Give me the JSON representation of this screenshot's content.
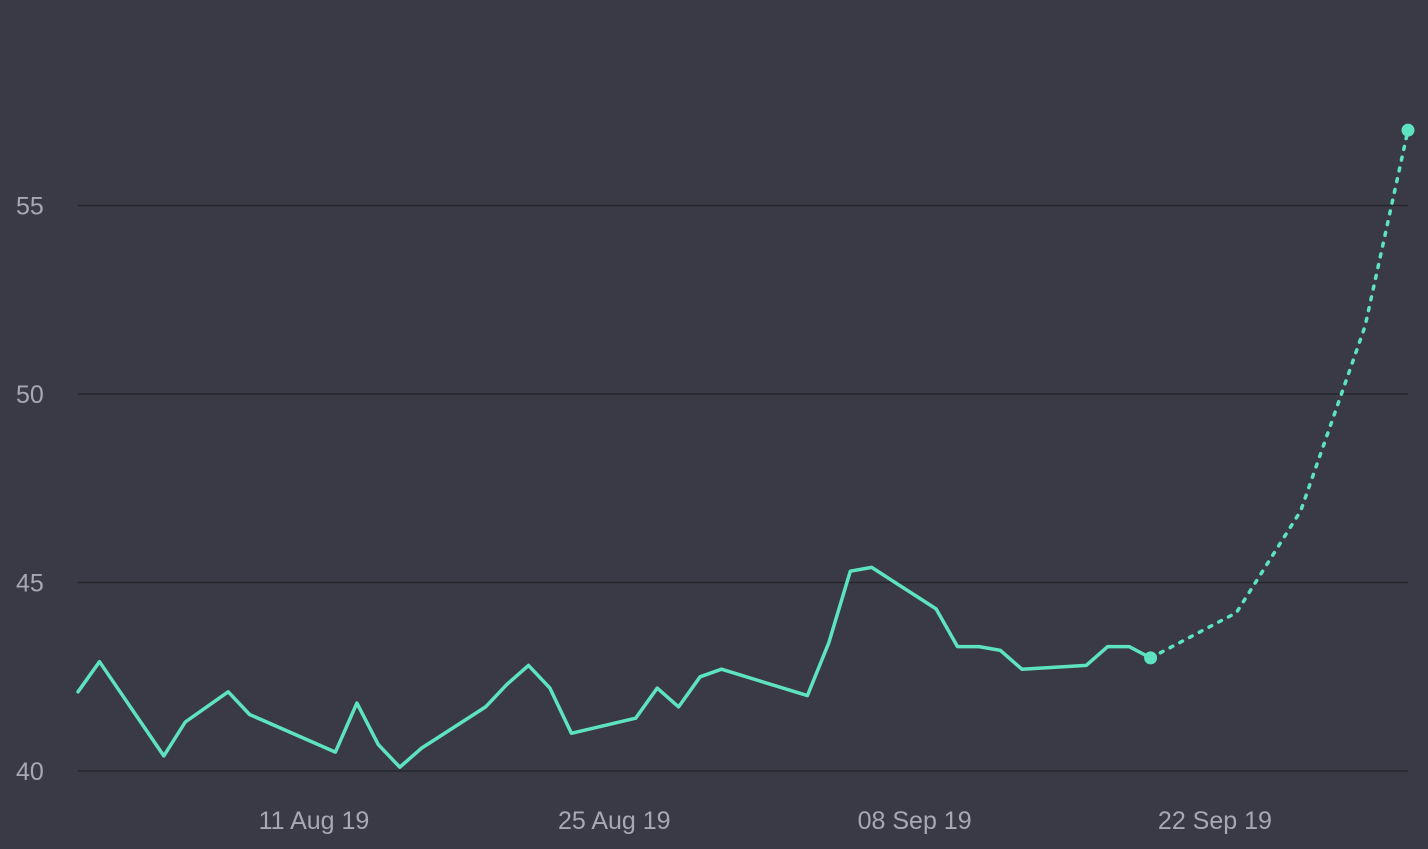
{
  "chart_data": {
    "type": "line",
    "title": "",
    "xlabel": "",
    "ylabel": "",
    "ylim": [
      40,
      60
    ],
    "x_range": [
      "2019-07-31",
      "2019-10-01"
    ],
    "y_ticks": [
      {
        "value": 40,
        "label": "40"
      },
      {
        "value": 45,
        "label": "45"
      },
      {
        "value": 50,
        "label": "50"
      },
      {
        "value": 55,
        "label": "55"
      }
    ],
    "x_ticks": [
      {
        "date": "2019-08-11",
        "label": "11 Aug 19"
      },
      {
        "date": "2019-08-25",
        "label": "25 Aug 19"
      },
      {
        "date": "2019-09-08",
        "label": "08 Sep 19"
      },
      {
        "date": "2019-09-22",
        "label": "22 Sep 19"
      }
    ],
    "grid": true,
    "legend": "none",
    "colors": {
      "background": "#393a45",
      "series": "#5ee3c0",
      "grid": "#26272e",
      "tick_label": "#a7a8b3"
    },
    "series": [
      {
        "style": "solid",
        "points": [
          {
            "x": "2019-07-31",
            "y": 42.1
          },
          {
            "x": "2019-08-01",
            "y": 42.9
          },
          {
            "x": "2019-08-04",
            "y": 40.4
          },
          {
            "x": "2019-08-05",
            "y": 41.3
          },
          {
            "x": "2019-08-06",
            "y": 41.7
          },
          {
            "x": "2019-08-07",
            "y": 42.1
          },
          {
            "x": "2019-08-08",
            "y": 41.5
          },
          {
            "x": "2019-08-12",
            "y": 40.5
          },
          {
            "x": "2019-08-13",
            "y": 41.8
          },
          {
            "x": "2019-08-14",
            "y": 40.7
          },
          {
            "x": "2019-08-15",
            "y": 40.1
          },
          {
            "x": "2019-08-16",
            "y": 40.6
          },
          {
            "x": "2019-08-19",
            "y": 41.7
          },
          {
            "x": "2019-08-20",
            "y": 42.3
          },
          {
            "x": "2019-08-21",
            "y": 42.8
          },
          {
            "x": "2019-08-22",
            "y": 42.2
          },
          {
            "x": "2019-08-23",
            "y": 41.0
          },
          {
            "x": "2019-08-26",
            "y": 41.4
          },
          {
            "x": "2019-08-27",
            "y": 42.2
          },
          {
            "x": "2019-08-28",
            "y": 41.7
          },
          {
            "x": "2019-08-29",
            "y": 42.5
          },
          {
            "x": "2019-08-30",
            "y": 42.7
          },
          {
            "x": "2019-09-03",
            "y": 42.0
          },
          {
            "x": "2019-09-04",
            "y": 43.4
          },
          {
            "x": "2019-09-05",
            "y": 45.3
          },
          {
            "x": "2019-09-06",
            "y": 45.4
          },
          {
            "x": "2019-09-09",
            "y": 44.3
          },
          {
            "x": "2019-09-10",
            "y": 43.3
          },
          {
            "x": "2019-09-11",
            "y": 43.3
          },
          {
            "x": "2019-09-12",
            "y": 43.2
          },
          {
            "x": "2019-09-13",
            "y": 42.7
          },
          {
            "x": "2019-09-16",
            "y": 42.8
          },
          {
            "x": "2019-09-17",
            "y": 43.3
          },
          {
            "x": "2019-09-18",
            "y": 43.3
          },
          {
            "x": "2019-09-19",
            "y": 43.0
          }
        ]
      },
      {
        "style": "dotted",
        "points": [
          {
            "x": "2019-09-19",
            "y": 43.0
          },
          {
            "x": "2019-09-23",
            "y": 44.2
          },
          {
            "x": "2019-09-26",
            "y": 46.9
          },
          {
            "x": "2019-09-29",
            "y": 51.8
          },
          {
            "x": "2019-10-01",
            "y": 57.0
          }
        ]
      }
    ]
  }
}
